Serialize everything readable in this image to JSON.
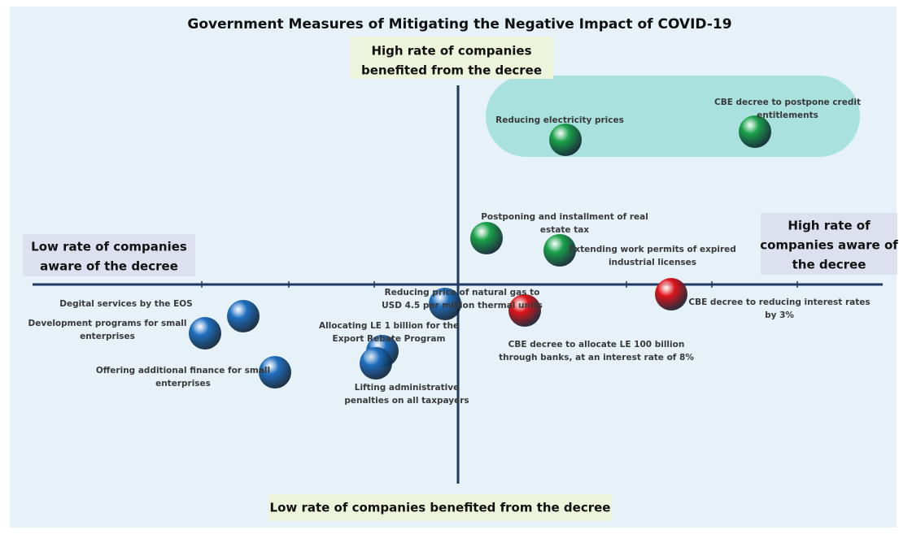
{
  "title": "Government Measures of Mitigating the Negative Impact of COVID-19",
  "quadrant_labels": {
    "top": [
      "High rate of companies",
      "benefited from the decree"
    ],
    "bottom": [
      "Low rate of companies benefited from the decree"
    ],
    "left": [
      "Low rate of companies",
      "aware of the decree"
    ],
    "right": [
      "High rate of",
      "companies aware of",
      "the decree"
    ]
  },
  "nodes": [
    {
      "label": [
        "Reducing electricity prices"
      ],
      "color": "#1aa34a"
    },
    {
      "label": [
        "CBE decree to postpone credit",
        "entitlements"
      ],
      "color": "#1aa34a"
    },
    {
      "label": [
        "Postponing and installment of real",
        "estate tax"
      ],
      "color": "#1aa34a"
    },
    {
      "label": [
        "Extending work permits of expired",
        "industrial licenses"
      ],
      "color": "#1aa34a"
    },
    {
      "label": [
        "CBE decree to reducing interest rates",
        "by 3%"
      ],
      "color": "#e0141a"
    },
    {
      "label": [
        "CBE decree to allocate LE 100 billion",
        "through banks, at an interest rate of 8%"
      ],
      "color": "#e0141a"
    },
    {
      "label": [
        "Reducing price of natural gas to",
        "USD 4.5 per million thermal units"
      ],
      "color": "#1f6fc0"
    },
    {
      "label": [
        "Allocating LE 1 billion for the",
        "Export Rebate Program"
      ],
      "color": "#1f6fc0"
    },
    {
      "label": [
        "Lifting administrative",
        "penalties on all taxpayers"
      ],
      "color": "#1f6fc0"
    },
    {
      "label": [
        "Offering additional finance for small",
        "enterprises"
      ],
      "color": "#1f6fc0"
    },
    {
      "label": [
        "Development programs for small",
        "enterprises"
      ],
      "color": "#1f6fc0"
    },
    {
      "label": [
        "Degital services by the EOS"
      ],
      "color": "#1f6fc0"
    }
  ]
}
